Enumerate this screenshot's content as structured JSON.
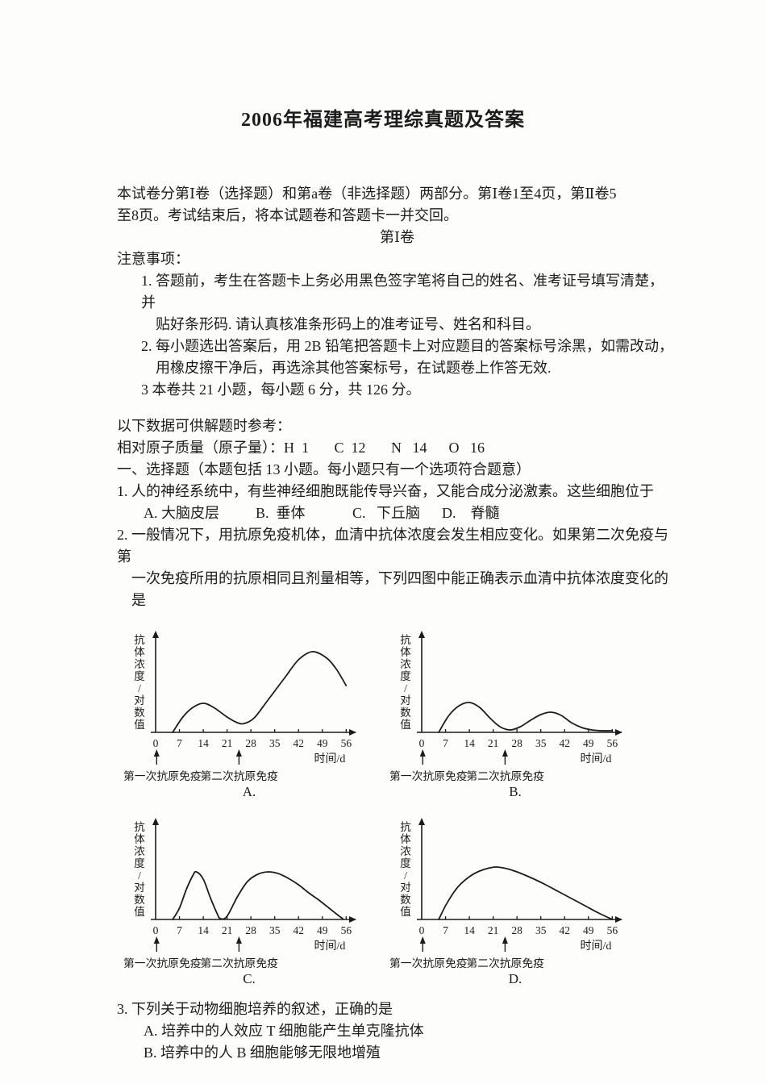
{
  "page": {
    "title": "2006年福建高考理综真题及答案"
  },
  "intro": {
    "line1": "本试卷分第Ⅰ卷（选择题）和第a卷（非选择题）两部分。第Ⅰ卷1至4页，第Ⅱ卷5",
    "line2": "至8页。考试结束后，将本试题卷和答题卡一并交回。"
  },
  "volume_heading": "第Ⅰ卷",
  "notes": {
    "heading": "注意事项：",
    "item1_line1": "1. 答题前，考生在答题卡上务必用黑色签字笔将自己的姓名、准考证号填写清楚，并",
    "item1_line2": "贴好条形码. 请认真核准条形码上的准考证号、姓名和科目。",
    "item2_line1": "2. 每小题选出答案后，用 2B 铅笔把答题卡上对应题目的答案标号涂黑，如需改动，",
    "item2_line2": "用橡皮擦干净后，再选涂其他答案标号，在试题卷上作答无效.",
    "item3": "3 本卷共 21 小题，每小题 6 分，共 126 分。"
  },
  "reference": {
    "line1": "以下数据可供解题时参考：",
    "line2": "相对原子质量（原子量）：H  1       C  12       N   14      O   16"
  },
  "section1_heading": "一、选择题（本题包括 13 小题。每小题只有一个选项符合题意）",
  "q1": {
    "text": "1. 人的神经系统中，有些神经细胞既能传导兴奋，又能合成分泌激素。这些细胞位于",
    "options": "A. 大脑皮层          B.  垂体             C.   下丘脑      D.    脊髓"
  },
  "q2": {
    "line1": "2. 一般情况下，用抗原免疫机体，血清中抗体浓度会发生相应变化。如果第二次免疫与第",
    "line2": "一次免疫所用的抗原相同且剂量相等，下列四图中能正确表示血清中抗体浓度变化的是"
  },
  "q3": {
    "text": "3. 下列关于动物细胞培养的叙述，正确的是",
    "optionA": "A. 培养中的人效应 T 细胞能产生单克隆抗体",
    "optionB": "B. 培养中的人 B 细胞能够无限地增殖"
  },
  "chart_data": [
    {
      "id": "A",
      "caption": "A.",
      "type": "line",
      "ylabel": "抗体浓度/对数值",
      "xlabel": "时间/d",
      "x_ticks": [
        0,
        7,
        14,
        21,
        28,
        35,
        42,
        49,
        56
      ],
      "annotations": [
        {
          "label": "第一次抗原免疫",
          "day": 0.3
        },
        {
          "label": "第二次抗原免疫",
          "day": 24.5
        }
      ],
      "description": "first moderate peak at day 14, dip near day 25, much higher second peak near day 46, slight decline to day 56",
      "points": [
        [
          5,
          0
        ],
        [
          8,
          19
        ],
        [
          11,
          31
        ],
        [
          14,
          36
        ],
        [
          17,
          31
        ],
        [
          21,
          19
        ],
        [
          24,
          12
        ],
        [
          26,
          11
        ],
        [
          29,
          18
        ],
        [
          33,
          40
        ],
        [
          38,
          68
        ],
        [
          42,
          90
        ],
        [
          46,
          100
        ],
        [
          50,
          93
        ],
        [
          53,
          79
        ],
        [
          56,
          58
        ]
      ]
    },
    {
      "id": "B",
      "caption": "B.",
      "type": "line",
      "ylabel": "抗体浓度/对数值",
      "xlabel": "时间/d",
      "x_ticks": [
        0,
        7,
        14,
        21,
        28,
        35,
        42,
        49,
        56
      ],
      "annotations": [
        {
          "label": "第一次抗原免疫",
          "day": 0.3
        },
        {
          "label": "第二次抗原免疫",
          "day": 24.5
        }
      ],
      "description": "moderate first peak at day 14, dip near day 26, smaller second peak near day 38, falls to baseline by day 49-56",
      "points": [
        [
          5,
          0
        ],
        [
          8,
          21
        ],
        [
          11,
          33
        ],
        [
          14,
          37
        ],
        [
          17,
          31
        ],
        [
          20,
          18
        ],
        [
          23,
          7
        ],
        [
          26,
          3
        ],
        [
          29,
          7
        ],
        [
          32,
          15
        ],
        [
          35,
          22
        ],
        [
          38,
          25
        ],
        [
          41,
          21
        ],
        [
          44,
          12
        ],
        [
          47,
          6
        ],
        [
          50,
          3
        ],
        [
          53,
          2
        ],
        [
          56,
          2
        ]
      ]
    },
    {
      "id": "C",
      "caption": "C.",
      "type": "line",
      "ylabel": "抗体浓度/对数值",
      "xlabel": "时间/d",
      "x_ticks": [
        0,
        7,
        14,
        21,
        28,
        35,
        42,
        49,
        56
      ],
      "annotations": [
        {
          "label": "第一次抗原免疫",
          "day": 0.3
        },
        {
          "label": "第二次抗原免疫",
          "day": 24.5
        }
      ],
      "description": "first peak at day 12, returns to baseline near day 19, broad second peak of similar height near day 31-35, back to baseline by day 55",
      "points": [
        [
          5,
          0
        ],
        [
          7,
          14
        ],
        [
          9,
          37
        ],
        [
          11,
          55
        ],
        [
          12,
          59
        ],
        [
          14,
          50
        ],
        [
          16,
          28
        ],
        [
          18,
          8
        ],
        [
          19,
          1
        ],
        [
          21,
          4
        ],
        [
          24,
          28
        ],
        [
          27,
          47
        ],
        [
          30,
          56
        ],
        [
          33,
          59
        ],
        [
          36,
          57
        ],
        [
          39,
          51
        ],
        [
          42,
          43
        ],
        [
          45,
          33
        ],
        [
          48,
          24
        ],
        [
          51,
          14
        ],
        [
          54,
          4
        ],
        [
          55,
          1
        ]
      ]
    },
    {
      "id": "D",
      "caption": "D.",
      "type": "line",
      "ylabel": "抗体浓度/对数值",
      "xlabel": "时间/d",
      "x_ticks": [
        0,
        7,
        14,
        21,
        28,
        35,
        42,
        49,
        56
      ],
      "annotations": [
        {
          "label": "第一次抗原免疫",
          "day": 0.3
        },
        {
          "label": "第二次抗原免疫",
          "day": 24.5
        }
      ],
      "description": "single broad peak rising from day 5 to maximum near day 21, slow decline back to baseline at day 56",
      "points": [
        [
          5,
          0
        ],
        [
          7,
          17
        ],
        [
          9,
          31
        ],
        [
          11,
          42
        ],
        [
          14,
          53
        ],
        [
          17,
          60
        ],
        [
          20,
          64
        ],
        [
          22,
          65
        ],
        [
          25,
          63
        ],
        [
          28,
          59
        ],
        [
          32,
          52
        ],
        [
          36,
          44
        ],
        [
          40,
          35
        ],
        [
          44,
          26
        ],
        [
          48,
          17
        ],
        [
          52,
          8
        ],
        [
          56,
          0
        ]
      ]
    }
  ]
}
